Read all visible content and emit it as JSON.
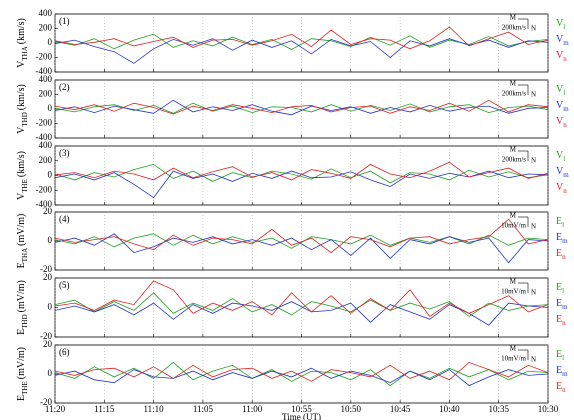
{
  "chart_data": [
    {
      "type": "line",
      "label": "(1)",
      "ylabel": "V",
      "ylabel_sub": "THA",
      "ylabel_unit": "(km/s)",
      "scale": {
        "top": "M",
        "side": "N",
        "size": "200km/s"
      },
      "x": [
        680,
        678,
        676,
        674,
        672,
        670,
        668,
        666,
        664,
        662,
        660,
        658,
        656,
        654,
        652,
        650,
        648,
        646,
        644,
        642,
        640,
        638,
        636,
        634,
        632,
        630
      ],
      "xlim": [
        680,
        630
      ],
      "xticks": [
        {
          "value": 680,
          "label": "11:20"
        },
        {
          "value": 675,
          "label": "11:15"
        },
        {
          "value": 670,
          "label": "11:10"
        },
        {
          "value": 665,
          "label": "11:05"
        },
        {
          "value": 660,
          "label": "11:00"
        },
        {
          "value": 655,
          "label": "10:55"
        },
        {
          "value": 650,
          "label": "10:50"
        },
        {
          "value": 645,
          "label": "10:45"
        },
        {
          "value": 640,
          "label": "10:40"
        },
        {
          "value": 635,
          "label": "10:35"
        },
        {
          "value": 630,
          "label": "10:30"
        }
      ],
      "ylim": [
        -400,
        400
      ],
      "yticks": [
        -400,
        -200,
        0,
        200,
        400
      ],
      "grid": true,
      "series": [
        {
          "name": "V",
          "sub": "l",
          "color": "#22a022",
          "values": [
            20,
            -30,
            60,
            -80,
            40,
            120,
            -60,
            30,
            -40,
            80,
            -20,
            50,
            -90,
            60,
            30,
            -50,
            80,
            -30,
            100,
            -60,
            40,
            -20,
            90,
            -40,
            20,
            50
          ]
        },
        {
          "name": "V",
          "sub": "m",
          "color": "#2233cc",
          "values": [
            -10,
            40,
            -50,
            -120,
            -280,
            -80,
            50,
            -30,
            60,
            -100,
            40,
            -60,
            30,
            -150,
            50,
            -40,
            20,
            -200,
            30,
            -40,
            60,
            -30,
            40,
            -60,
            30,
            10
          ]
        },
        {
          "name": "V",
          "sub": "n",
          "color": "#dd2222",
          "values": [
            30,
            -20,
            10,
            60,
            -40,
            20,
            80,
            -60,
            40,
            50,
            -30,
            30,
            120,
            -50,
            180,
            -20,
            60,
            40,
            -80,
            30,
            220,
            -40,
            60,
            150,
            -20,
            40
          ]
        }
      ]
    },
    {
      "type": "line",
      "label": "(2)",
      "ylabel": "V",
      "ylabel_sub": "THD",
      "ylabel_unit": "(km/s)",
      "scale": {
        "top": "M",
        "side": "N",
        "size": "200km/s"
      },
      "x": [
        680,
        678,
        676,
        674,
        672,
        670,
        668,
        666,
        664,
        662,
        660,
        658,
        656,
        654,
        652,
        650,
        648,
        646,
        644,
        642,
        640,
        638,
        636,
        634,
        632,
        630
      ],
      "xlim": [
        680,
        630
      ],
      "xticks": [
        {
          "value": 680,
          "label": "11:20"
        },
        {
          "value": 675,
          "label": "11:15"
        },
        {
          "value": 670,
          "label": "11:10"
        },
        {
          "value": 665,
          "label": "11:05"
        },
        {
          "value": 660,
          "label": "11:00"
        },
        {
          "value": 655,
          "label": "10:55"
        },
        {
          "value": 650,
          "label": "10:50"
        },
        {
          "value": 645,
          "label": "10:45"
        },
        {
          "value": 640,
          "label": "10:40"
        },
        {
          "value": 635,
          "label": "10:35"
        },
        {
          "value": 630,
          "label": "10:30"
        }
      ],
      "ylim": [
        -400,
        400
      ],
      "yticks": [
        -400,
        -200,
        0,
        200,
        400
      ],
      "grid": true,
      "series": [
        {
          "name": "V",
          "sub": "l",
          "color": "#22a022",
          "values": [
            10,
            -40,
            30,
            60,
            -20,
            50,
            -60,
            80,
            -30,
            40,
            -50,
            30,
            20,
            -40,
            60,
            -30,
            50,
            -20,
            70,
            -40,
            30,
            60,
            -50,
            20,
            40,
            -10
          ]
        },
        {
          "name": "V",
          "sub": "m",
          "color": "#2233cc",
          "values": [
            -20,
            30,
            -50,
            40,
            -10,
            -60,
            120,
            -40,
            30,
            -20,
            60,
            -30,
            -80,
            40,
            -20,
            30,
            -60,
            20,
            -40,
            50,
            -30,
            20,
            40,
            -60,
            10,
            20
          ]
        },
        {
          "name": "V",
          "sub": "n",
          "color": "#dd2222",
          "values": [
            40,
            -10,
            60,
            -30,
            80,
            20,
            -70,
            40,
            -20,
            60,
            10,
            -50,
            30,
            50,
            -40,
            20,
            40,
            -60,
            30,
            -20,
            80,
            -30,
            120,
            -40,
            60,
            30
          ]
        }
      ]
    },
    {
      "type": "line",
      "label": "(3)",
      "ylabel": "V",
      "ylabel_sub": "THE",
      "ylabel_unit": "(km/s)",
      "scale": {
        "top": "M",
        "side": "N",
        "size": "200km/s"
      },
      "x": [
        680,
        678,
        676,
        674,
        672,
        670,
        668,
        666,
        664,
        662,
        660,
        658,
        656,
        654,
        652,
        650,
        648,
        646,
        644,
        642,
        640,
        638,
        636,
        634,
        632,
        630
      ],
      "xlim": [
        680,
        630
      ],
      "xticks": [
        {
          "value": 680,
          "label": "11:20"
        },
        {
          "value": 675,
          "label": "11:15"
        },
        {
          "value": 670,
          "label": "11:10"
        },
        {
          "value": 665,
          "label": "11:05"
        },
        {
          "value": 660,
          "label": "11:00"
        },
        {
          "value": 655,
          "label": "10:55"
        },
        {
          "value": 650,
          "label": "10:50"
        },
        {
          "value": 645,
          "label": "10:45"
        },
        {
          "value": 640,
          "label": "10:40"
        },
        {
          "value": 635,
          "label": "10:35"
        },
        {
          "value": 630,
          "label": "10:30"
        }
      ],
      "ylim": [
        -400,
        400
      ],
      "yticks": [
        -400,
        -200,
        0,
        200,
        400
      ],
      "grid": true,
      "series": [
        {
          "name": "V",
          "sub": "l",
          "color": "#22a022",
          "values": [
            20,
            -60,
            40,
            -20,
            80,
            150,
            -40,
            60,
            -80,
            40,
            -30,
            60,
            20,
            -50,
            90,
            -30,
            60,
            -100,
            40,
            20,
            -60,
            70,
            -20,
            50,
            -30,
            10
          ]
        },
        {
          "name": "V",
          "sub": "m",
          "color": "#2233cc",
          "values": [
            -30,
            20,
            -60,
            40,
            -120,
            -300,
            60,
            -40,
            20,
            -80,
            30,
            -40,
            60,
            -30,
            -20,
            50,
            -60,
            -150,
            20,
            -40,
            30,
            -20,
            60,
            -30,
            20,
            10
          ]
        },
        {
          "name": "V",
          "sub": "n",
          "color": "#dd2222",
          "values": [
            10,
            40,
            -30,
            60,
            20,
            -60,
            100,
            -30,
            50,
            120,
            -20,
            40,
            -60,
            80,
            30,
            -40,
            150,
            20,
            -30,
            60,
            180,
            -20,
            40,
            100,
            -40,
            30
          ]
        }
      ]
    },
    {
      "type": "line",
      "label": "(4)",
      "ylabel": "E",
      "ylabel_sub": "THA",
      "ylabel_unit": "(mV/m)",
      "scale": {
        "top": "M",
        "side": "N",
        "size": "10mV/m"
      },
      "x": [
        680,
        678,
        676,
        674,
        672,
        670,
        668,
        666,
        664,
        662,
        660,
        658,
        656,
        654,
        652,
        650,
        648,
        646,
        644,
        642,
        640,
        638,
        636,
        634,
        632,
        630
      ],
      "xlim": [
        680,
        630
      ],
      "xticks": [
        {
          "value": 680,
          "label": "11:20"
        },
        {
          "value": 675,
          "label": "11:15"
        },
        {
          "value": 670,
          "label": "11:10"
        },
        {
          "value": 665,
          "label": "11:05"
        },
        {
          "value": 660,
          "label": "11:00"
        },
        {
          "value": 655,
          "label": "10:55"
        },
        {
          "value": 650,
          "label": "10:50"
        },
        {
          "value": 645,
          "label": "10:45"
        },
        {
          "value": 640,
          "label": "10:40"
        },
        {
          "value": 635,
          "label": "10:35"
        },
        {
          "value": 630,
          "label": "10:30"
        }
      ],
      "ylim": [
        -20,
        20
      ],
      "yticks": [
        -20,
        0,
        20
      ],
      "grid": true,
      "series": [
        {
          "name": "E",
          "sub": "l",
          "color": "#22a022",
          "values": [
            1,
            -2,
            3,
            -4,
            2,
            5,
            -3,
            4,
            -2,
            3,
            -1,
            2,
            -5,
            3,
            1,
            -2,
            4,
            -3,
            2,
            -1,
            3,
            -2,
            4,
            -3,
            2,
            1
          ]
        },
        {
          "name": "E",
          "sub": "m",
          "color": "#2233cc",
          "values": [
            -1,
            2,
            -3,
            5,
            -8,
            -4,
            2,
            -1,
            3,
            -2,
            1,
            -3,
            2,
            -6,
            1,
            -10,
            2,
            -12,
            1,
            -2,
            3,
            -1,
            2,
            -15,
            1,
            0
          ]
        },
        {
          "name": "E",
          "sub": "n",
          "color": "#dd2222",
          "values": [
            2,
            -1,
            1,
            3,
            -2,
            -6,
            4,
            -3,
            2,
            1,
            -2,
            8,
            -3,
            2,
            -8,
            3,
            1,
            -4,
            2,
            3,
            -2,
            1,
            3,
            15,
            -2,
            1
          ]
        }
      ]
    },
    {
      "type": "line",
      "label": "(5)",
      "ylabel": "E",
      "ylabel_sub": "THD",
      "ylabel_unit": "(mV/m)",
      "scale": {
        "top": "M",
        "side": "N",
        "size": "10mV/m"
      },
      "x": [
        680,
        678,
        676,
        674,
        672,
        670,
        668,
        666,
        664,
        662,
        660,
        658,
        656,
        654,
        652,
        650,
        648,
        646,
        644,
        642,
        640,
        638,
        636,
        634,
        632,
        630
      ],
      "xlim": [
        680,
        630
      ],
      "xticks": [
        {
          "value": 680,
          "label": "11:20"
        },
        {
          "value": 675,
          "label": "11:15"
        },
        {
          "value": 670,
          "label": "11:10"
        },
        {
          "value": 665,
          "label": "11:05"
        },
        {
          "value": 660,
          "label": "11:00"
        },
        {
          "value": 655,
          "label": "10:55"
        },
        {
          "value": 650,
          "label": "10:50"
        },
        {
          "value": 645,
          "label": "10:45"
        },
        {
          "value": 640,
          "label": "10:40"
        },
        {
          "value": 635,
          "label": "10:35"
        },
        {
          "value": 630,
          "label": "10:30"
        }
      ],
      "ylim": [
        -20,
        20
      ],
      "yticks": [
        -20,
        0,
        20
      ],
      "grid": true,
      "series": [
        {
          "name": "E",
          "sub": "l",
          "color": "#22a022",
          "values": [
            2,
            5,
            -3,
            4,
            -2,
            10,
            -4,
            3,
            -2,
            6,
            -3,
            2,
            -5,
            4,
            1,
            -3,
            5,
            -2,
            3,
            -1,
            4,
            -6,
            3,
            -2,
            1,
            2
          ]
        },
        {
          "name": "E",
          "sub": "m",
          "color": "#2233cc",
          "values": [
            -2,
            1,
            -3,
            2,
            -5,
            3,
            -8,
            2,
            -4,
            3,
            1,
            -2,
            4,
            -3,
            -2,
            3,
            -10,
            2,
            -3,
            -8,
            2,
            -4,
            -12,
            3,
            1,
            0
          ]
        },
        {
          "name": "E",
          "sub": "n",
          "color": "#dd2222",
          "values": [
            1,
            3,
            -2,
            5,
            2,
            18,
            12,
            -4,
            3,
            -2,
            4,
            -5,
            10,
            -3,
            8,
            -4,
            6,
            -2,
            12,
            -6,
            3,
            -4,
            2,
            8,
            -3,
            2
          ]
        }
      ]
    },
    {
      "type": "line",
      "label": "(6)",
      "ylabel": "E",
      "ylabel_sub": "THE",
      "ylabel_unit": "(mV/m)",
      "scale": {
        "top": "M",
        "side": "N",
        "size": "10mV/m"
      },
      "x": [
        680,
        678,
        676,
        674,
        672,
        670,
        668,
        666,
        664,
        662,
        660,
        658,
        656,
        654,
        652,
        650,
        648,
        646,
        644,
        642,
        640,
        638,
        636,
        634,
        632,
        630
      ],
      "xlim": [
        680,
        630
      ],
      "xticks": [
        {
          "value": 680,
          "label": "11:20"
        },
        {
          "value": 675,
          "label": "11:15"
        },
        {
          "value": 670,
          "label": "11:10"
        },
        {
          "value": 665,
          "label": "11:05"
        },
        {
          "value": 660,
          "label": "11:00"
        },
        {
          "value": 655,
          "label": "10:55"
        },
        {
          "value": 650,
          "label": "10:50"
        },
        {
          "value": 645,
          "label": "10:45"
        },
        {
          "value": 640,
          "label": "10:40"
        },
        {
          "value": 635,
          "label": "10:35"
        },
        {
          "value": 630,
          "label": "10:30"
        }
      ],
      "ylim": [
        -20,
        20
      ],
      "yticks": [
        -20,
        0,
        20
      ],
      "grid": true,
      "xlabel": "Time (UT)",
      "series": [
        {
          "name": "E",
          "sub": "l",
          "color": "#22a022",
          "values": [
            1,
            -3,
            5,
            -2,
            4,
            -3,
            8,
            -4,
            2,
            6,
            -3,
            3,
            -5,
            2,
            1,
            -4,
            3,
            -8,
            2,
            -3,
            4,
            -2,
            3,
            -4,
            2,
            1
          ]
        },
        {
          "name": "E",
          "sub": "m",
          "color": "#2233cc",
          "values": [
            -1,
            2,
            -4,
            -6,
            3,
            -2,
            -3,
            2,
            -4,
            1,
            -3,
            2,
            -2,
            4,
            -3,
            2,
            -1,
            -6,
            2,
            -4,
            3,
            -8,
            -2,
            3,
            -1,
            0
          ]
        },
        {
          "name": "E",
          "sub": "n",
          "color": "#dd2222",
          "values": [
            2,
            -1,
            3,
            4,
            -2,
            5,
            -3,
            6,
            -2,
            3,
            4,
            -3,
            2,
            -5,
            3,
            1,
            -2,
            6,
            -3,
            2,
            -4,
            8,
            3,
            -2,
            6,
            1
          ]
        }
      ]
    }
  ]
}
